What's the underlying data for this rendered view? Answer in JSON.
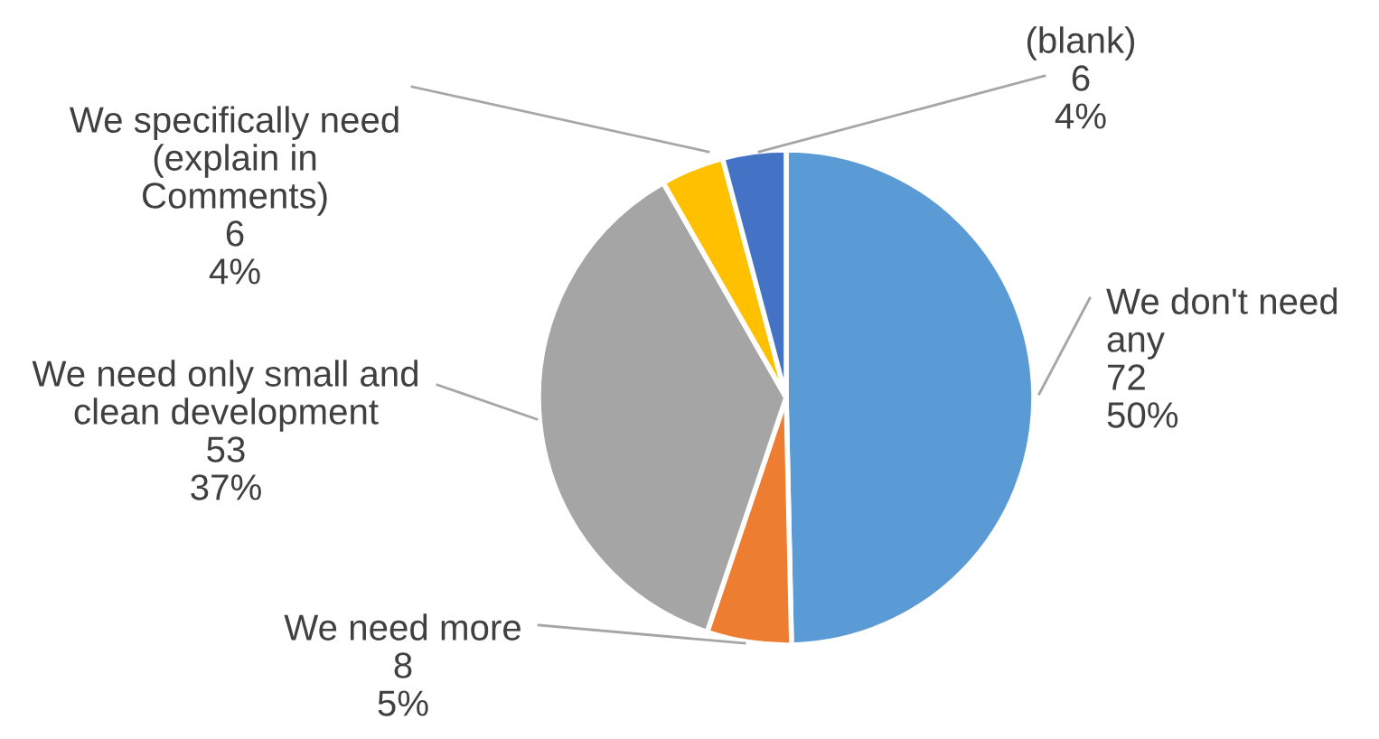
{
  "chart_data": {
    "type": "pie",
    "categories": [
      "We don't need\nany",
      "We need more",
      "We need only small and\nclean development",
      "We specifically need\n(explain in\nComments)",
      "(blank)"
    ],
    "values": [
      72,
      8,
      53,
      6,
      6
    ],
    "value_labels": [
      "72\n50%",
      "8\n5%",
      "53\n37%",
      "6\n4%",
      "6\n4%"
    ],
    "colors": [
      "#5b9bd5",
      "#ed7d31",
      "#a5a5a5",
      "#ffc000",
      "#4472c4"
    ],
    "legend": false
  }
}
